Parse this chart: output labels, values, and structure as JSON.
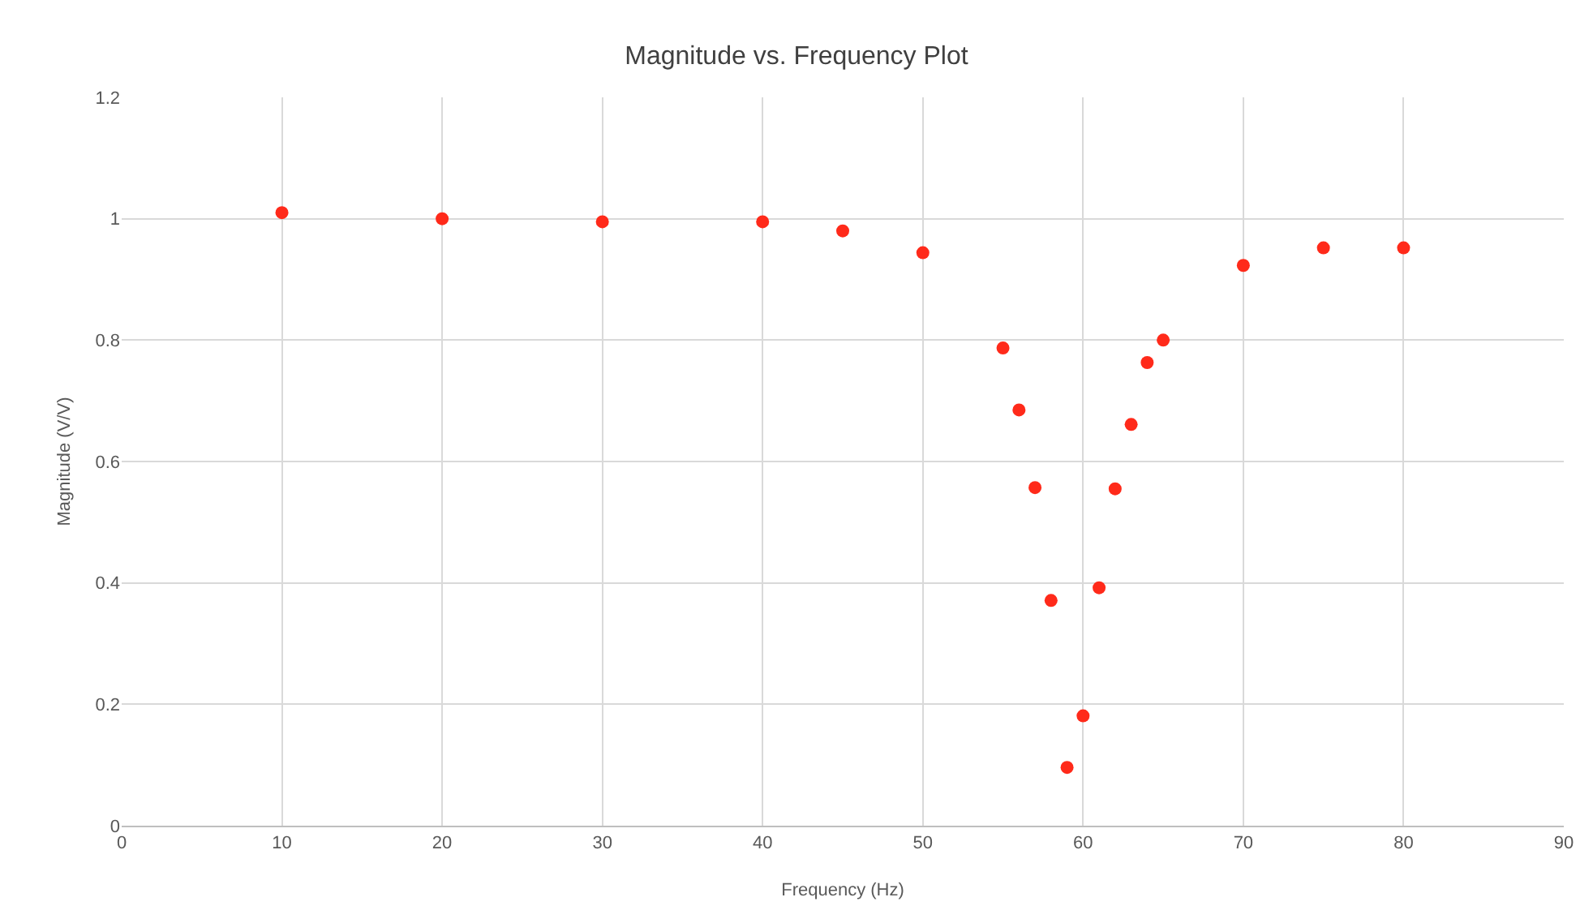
{
  "chart_data": {
    "type": "scatter",
    "title": "Magnitude vs. Frequency Plot",
    "xlabel": "Frequency (Hz)",
    "ylabel": "Magnitude (V/V)",
    "x": [
      10,
      20,
      30,
      40,
      45,
      50,
      55,
      56,
      57,
      58,
      59,
      60,
      61,
      62,
      63,
      64,
      65,
      70,
      75,
      80
    ],
    "series": [
      {
        "color": "#ff2a1a",
        "values": [
          1.01,
          1.0,
          0.995,
          0.995,
          0.98,
          0.944,
          0.787,
          0.685,
          0.557,
          0.371,
          0.096,
          0.181,
          0.392,
          0.555,
          0.661,
          0.763,
          0.8,
          0.923,
          0.952,
          0.952
        ]
      }
    ],
    "xlim": [
      0,
      90
    ],
    "xticks": [
      0,
      10,
      20,
      30,
      40,
      50,
      60,
      70,
      80,
      90
    ],
    "ylim": [
      0,
      1.2
    ],
    "yticks": [
      0,
      0.2,
      0.4,
      0.6,
      0.8,
      1,
      1.2
    ],
    "grid": true,
    "marker": "circle"
  }
}
